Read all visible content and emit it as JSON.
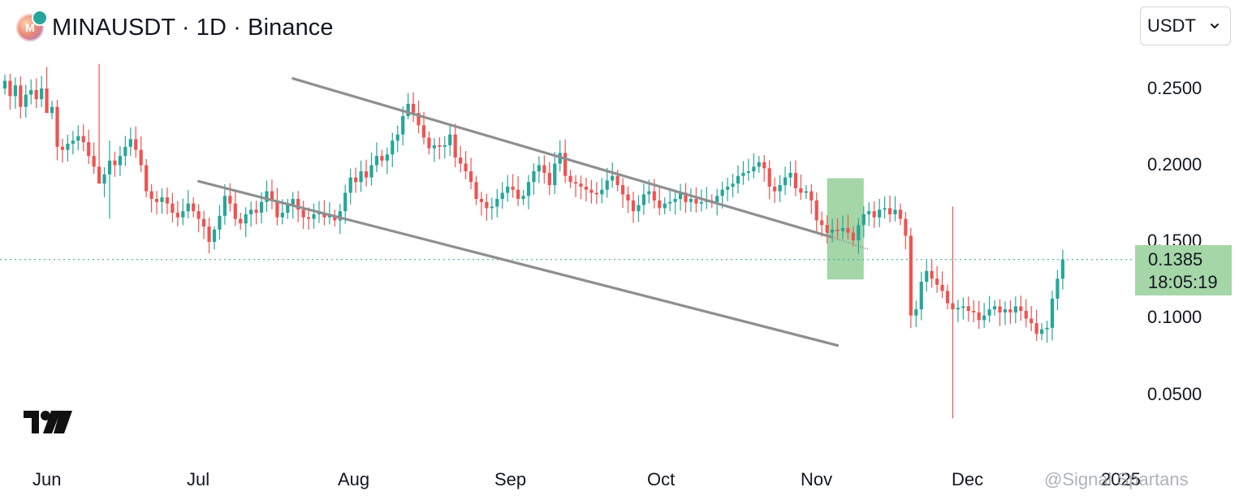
{
  "header": {
    "title": "MINAUSDT · 1D · Binance",
    "logo_icon": "mina-coin-icon"
  },
  "currency_select": {
    "value": "USDT",
    "icon": "chevron-down-icon"
  },
  "price_badge": {
    "price": "0.1385",
    "countdown": "18:05:19"
  },
  "watermark": "@Signal Spartans",
  "colors": {
    "up": "#26a69a",
    "down": "#ef5350",
    "channel": "#8f8f8f",
    "target_box": "#a5d6a7",
    "price_line": "#26a69a"
  },
  "chart_data": {
    "type": "candlestick",
    "title": "MINAUSDT · 1D · Binance",
    "yticks": [
      "0.2500",
      "0.2000",
      "0.1500",
      "0.1000",
      "0.0500"
    ],
    "xticks": [
      "Jun",
      "Jul",
      "Aug",
      "Sep",
      "Oct",
      "Nov",
      "Dec",
      "2025"
    ],
    "ylim": [
      0.025,
      0.27
    ],
    "last_price": 0.1385,
    "series": [
      {
        "date": "2024-05-27",
        "values": [
          0.255,
          0.245,
          0.252,
          0.238,
          0.246,
          0.249,
          0.243,
          0.25,
          0.234,
          0.238,
          0.212,
          0.21,
          0.214,
          0.216,
          0.219,
          0.215,
          0.206,
          0.199,
          0.188,
          0.194,
          0.203,
          0.2,
          0.206,
          0.212,
          0.217,
          0.21,
          0.2,
          0.183,
          0.178,
          0.176,
          0.179,
          0.175,
          0.169,
          0.166,
          0.17,
          0.175,
          0.17,
          0.165,
          0.16,
          0.15,
          0.158,
          0.167,
          0.18,
          0.175,
          0.165,
          0.162,
          0.168,
          0.171,
          0.169,
          0.176,
          0.183,
          0.177,
          0.166,
          0.169,
          0.174,
          0.178,
          0.171,
          0.166,
          0.165,
          0.168,
          0.169,
          0.166,
          0.167,
          0.164,
          0.17,
          0.182,
          0.192,
          0.189,
          0.196,
          0.192,
          0.2,
          0.206,
          0.203,
          0.207,
          0.216,
          0.22,
          0.232,
          0.24,
          0.234,
          0.226,
          0.218,
          0.211,
          0.213,
          0.212,
          0.213,
          0.22,
          0.205,
          0.201,
          0.196,
          0.189,
          0.178,
          0.176,
          0.172,
          0.173,
          0.178,
          0.182,
          0.186,
          0.184,
          0.178,
          0.18,
          0.189,
          0.196,
          0.2,
          0.195,
          0.187,
          0.201,
          0.208,
          0.193,
          0.189,
          0.188,
          0.186,
          0.184,
          0.182,
          0.181,
          0.184,
          0.19,
          0.193,
          0.187,
          0.181,
          0.177,
          0.17,
          0.174,
          0.181,
          0.183,
          0.177,
          0.172,
          0.175,
          0.176,
          0.178,
          0.182,
          0.176,
          0.178,
          0.175,
          0.176,
          0.177,
          0.176,
          0.18,
          0.184,
          0.186,
          0.188,
          0.193,
          0.195,
          0.196,
          0.199,
          0.202,
          0.198,
          0.186,
          0.183,
          0.187,
          0.192,
          0.195,
          0.185,
          0.182,
          0.183,
          0.177,
          0.164,
          0.161,
          0.156,
          0.158,
          0.157,
          0.159,
          0.156,
          0.151,
          0.161,
          0.168,
          0.17,
          0.166,
          0.171,
          0.172,
          0.168,
          0.171,
          0.165,
          0.154,
          0.102,
          0.106,
          0.124,
          0.131,
          0.126,
          0.122,
          0.118,
          0.11,
          0.106,
          0.107,
          0.108,
          0.105,
          0.104,
          0.099,
          0.102,
          0.106,
          0.108,
          0.104,
          0.106,
          0.104,
          0.108,
          0.105,
          0.1,
          0.097,
          0.09,
          0.093,
          0.094,
          0.113,
          0.126,
          0.1385
        ]
      }
    ],
    "annotations": [
      {
        "type": "channel_line",
        "label": "upper",
        "start": {
          "date": "2024-07-21",
          "price": 0.2565
        },
        "end": {
          "date": "2024-11-01",
          "price": 0.153
        }
      },
      {
        "type": "channel_line",
        "label": "lower",
        "start": {
          "date": "2024-07-03",
          "price": 0.1895
        },
        "end": {
          "date": "2024-11-02",
          "price": 0.0825
        }
      },
      {
        "type": "target_box",
        "start": {
          "date": "2024-10-31",
          "price": 0.1915
        },
        "end": {
          "date": "2024-11-07",
          "price": 0.1255
        }
      },
      {
        "type": "price_line",
        "price": 0.1385
      }
    ]
  }
}
